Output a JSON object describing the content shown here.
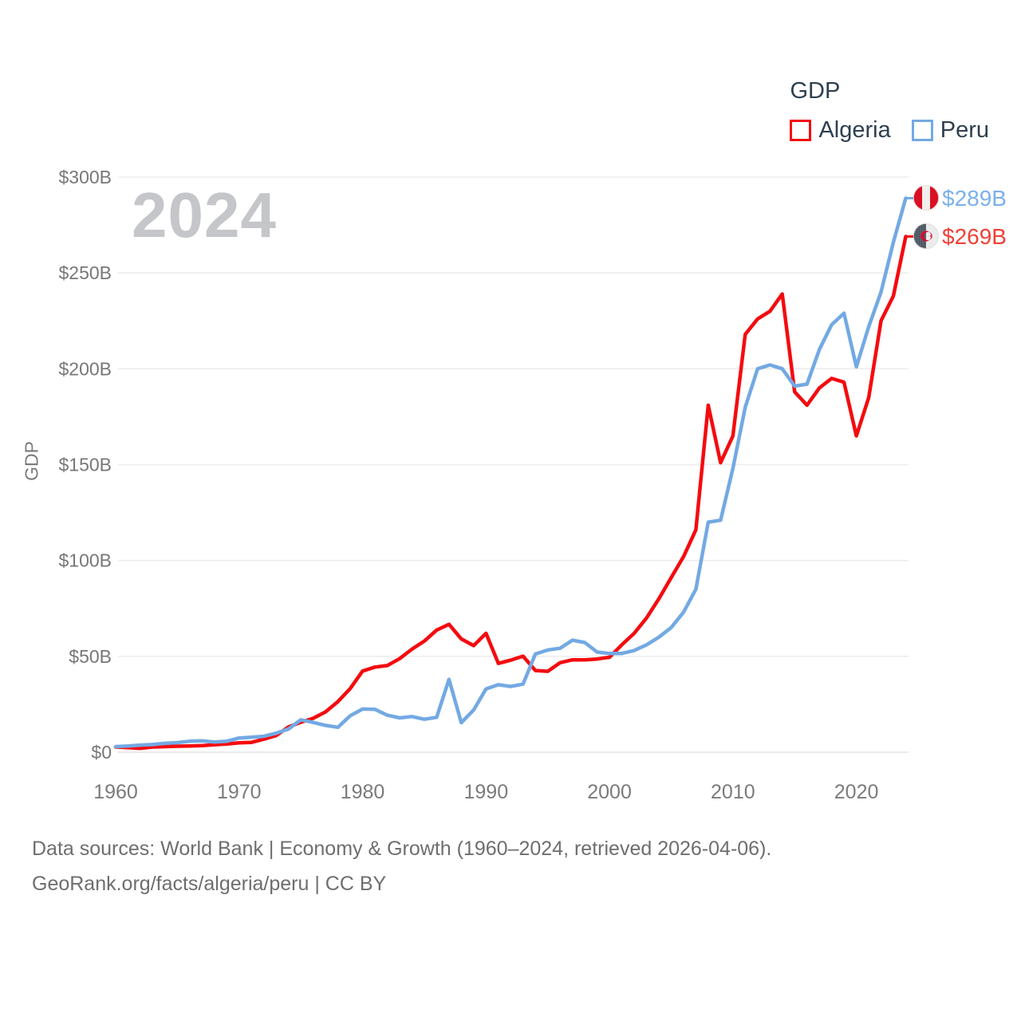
{
  "legend": {
    "title": "GDP",
    "items": [
      {
        "label": "Algeria",
        "color": "#f40b0f"
      },
      {
        "label": "Peru",
        "color": "#73a9e3"
      }
    ]
  },
  "watermark": "2024",
  "y_axis": {
    "title": "GDP",
    "ticks": [
      "$0",
      "$50B",
      "$100B",
      "$150B",
      "$200B",
      "$250B",
      "$300B"
    ],
    "tick_values": [
      0,
      50,
      100,
      150,
      200,
      250,
      300
    ]
  },
  "x_axis": {
    "ticks": [
      1960,
      1970,
      1980,
      1990,
      2000,
      2010,
      2020
    ]
  },
  "end_labels": [
    {
      "series": "Peru",
      "text": "$289B",
      "color": "#7cb1ea",
      "flag": "peru-flag"
    },
    {
      "series": "Algeria",
      "text": "$269B",
      "color": "#ef4136",
      "flag": "algeria-flag"
    }
  ],
  "footer": {
    "line1": "Data sources: World Bank | Economy & Growth (1960–2024, retrieved 2026-04-06).",
    "line2": "GeoRank.org/facts/algeria/peru | CC BY"
  },
  "chart_data": {
    "type": "line",
    "title": "GDP",
    "ylabel": "GDP",
    "xlabel": "",
    "xlim": [
      1960,
      2024
    ],
    "ylim": [
      0,
      300
    ],
    "grid": "horizontal",
    "legend_position": "top-right",
    "x": [
      1960,
      1961,
      1962,
      1963,
      1964,
      1965,
      1966,
      1967,
      1968,
      1969,
      1970,
      1971,
      1972,
      1973,
      1974,
      1975,
      1976,
      1977,
      1978,
      1979,
      1980,
      1981,
      1982,
      1983,
      1984,
      1985,
      1986,
      1987,
      1988,
      1989,
      1990,
      1991,
      1992,
      1993,
      1994,
      1995,
      1996,
      1997,
      1998,
      1999,
      2000,
      2001,
      2002,
      2003,
      2004,
      2005,
      2006,
      2007,
      2008,
      2009,
      2010,
      2011,
      2012,
      2013,
      2014,
      2015,
      2016,
      2017,
      2018,
      2019,
      2020,
      2021,
      2022,
      2023,
      2024
    ],
    "series": [
      {
        "name": "Algeria",
        "color": "#f40b0f",
        "unit": "billion USD",
        "final_label": "$269B",
        "values": [
          2.7,
          2.4,
          2.0,
          2.7,
          2.9,
          3.1,
          3.2,
          3.4,
          3.9,
          4.3,
          4.9,
          5.1,
          6.8,
          8.7,
          13.2,
          15.6,
          17.7,
          21.0,
          26.4,
          33.2,
          42.3,
          44.4,
          45.2,
          48.8,
          53.7,
          57.9,
          63.7,
          66.7,
          59.1,
          55.6,
          62.0,
          46.3,
          48.0,
          50.1,
          42.6,
          42.2,
          46.7,
          48.2,
          48.2,
          48.6,
          49.5,
          56.0,
          62.0,
          70.0,
          80.0,
          91.0,
          102.0,
          116.0,
          181.0,
          151.0,
          165.0,
          218.0,
          226.0,
          230.0,
          239.0,
          188.0,
          181.0,
          190.0,
          195.0,
          193.0,
          165.0,
          185.0,
          225.0,
          238.0,
          269.0
        ]
      },
      {
        "name": "Peru",
        "color": "#73a9e3",
        "unit": "billion USD",
        "final_label": "$289B",
        "values": [
          2.9,
          3.2,
          3.7,
          4.0,
          4.6,
          5.0,
          5.7,
          5.9,
          5.3,
          5.7,
          7.4,
          7.8,
          8.3,
          9.9,
          12.1,
          16.9,
          15.5,
          14.0,
          13.0,
          19.0,
          22.5,
          22.4,
          19.3,
          17.9,
          18.6,
          17.2,
          18.2,
          38.0,
          15.4,
          22.0,
          33.0,
          35.2,
          34.3,
          35.5,
          51.2,
          53.3,
          54.2,
          58.4,
          57.2,
          52.2,
          51.5,
          51.5,
          53.0,
          56.0,
          60.0,
          65.0,
          73.0,
          85.0,
          120.0,
          121.0,
          148.0,
          180.0,
          200.0,
          202.0,
          200.0,
          191.0,
          192.0,
          210.0,
          223.0,
          229.0,
          201.0,
          222.0,
          240.0,
          266.0,
          289.0
        ]
      }
    ]
  }
}
